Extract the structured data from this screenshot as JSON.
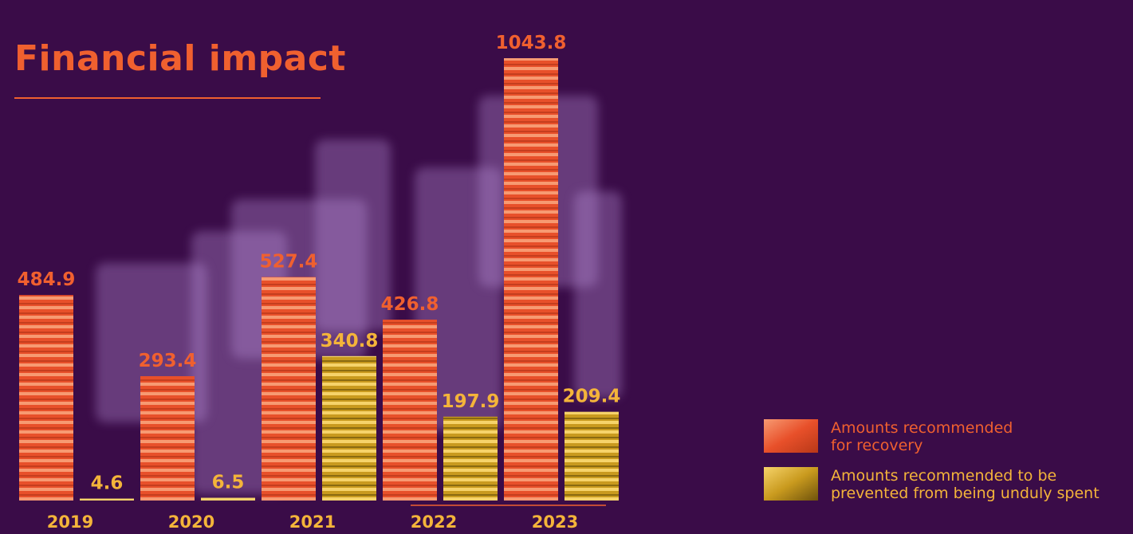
{
  "page": {
    "title": "Financial impact"
  },
  "colors": {
    "background": "#3a0c48",
    "recovery": "#f0602f",
    "prevented": "#f4b43a"
  },
  "chart_data": {
    "type": "bar",
    "categories": [
      "2019",
      "2020",
      "2021",
      "2022",
      "2023"
    ],
    "series": [
      {
        "name": "Amounts recommended for recovery",
        "values": [
          484.9,
          293.4,
          527.4,
          426.8,
          1043.8
        ]
      },
      {
        "name": "Amounts recommended to be prevented from being unduly spent",
        "values": [
          4.6,
          6.5,
          340.8,
          197.9,
          209.4
        ]
      }
    ],
    "title": "Financial impact",
    "ylim": [
      0,
      1043.8
    ],
    "grid": false,
    "legend": "bottom-right"
  },
  "legend": {
    "recovery_label": "Amounts recommended\nfor recovery",
    "prevented_label": "Amounts recommended to be\nprevented from being unduly spent"
  }
}
